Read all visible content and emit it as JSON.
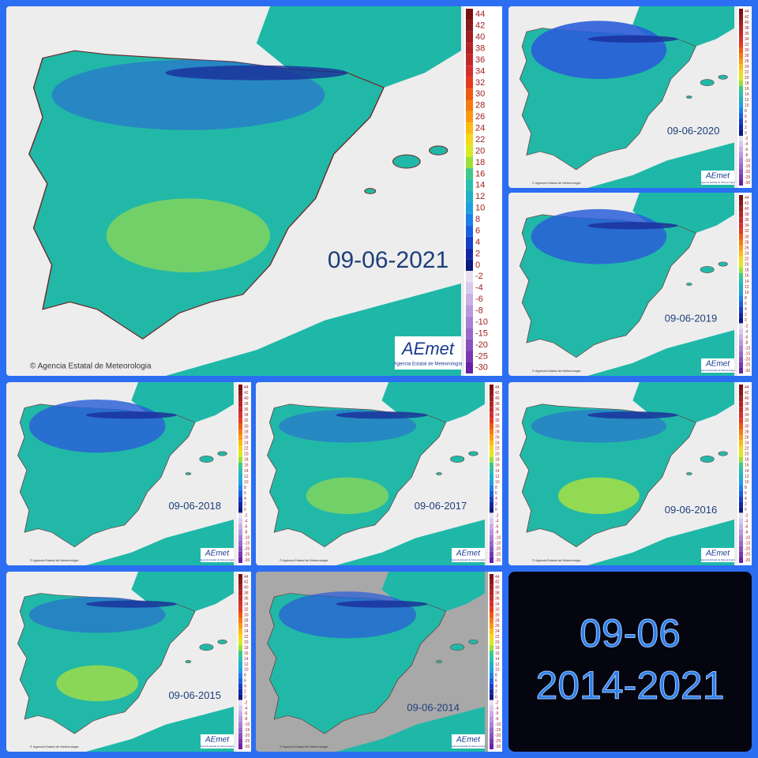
{
  "panels": [
    {
      "date": "09-06-2021"
    },
    {
      "date": "09-06-2020"
    },
    {
      "date": "09-06-2019"
    },
    {
      "date": "09-06-2018"
    },
    {
      "date": "09-06-2017"
    },
    {
      "date": "09-06-2016"
    },
    {
      "date": "09-06-2015"
    },
    {
      "date": "09-06-2014"
    }
  ],
  "credit": "© Agencia Estatal de Meteorologia",
  "logo": "AEmet",
  "logo_sub": "Agencia Estatal de Meteorología",
  "colorbar": {
    "labels": [
      44,
      42,
      40,
      38,
      36,
      34,
      32,
      30,
      28,
      26,
      24,
      22,
      20,
      18,
      16,
      14,
      12,
      10,
      8,
      6,
      4,
      2,
      0,
      -2,
      -4,
      -6,
      -8,
      -10,
      -15,
      -20,
      -25,
      -30
    ]
  },
  "summary": {
    "line1": "09-06",
    "line2": "2014-2021"
  }
}
